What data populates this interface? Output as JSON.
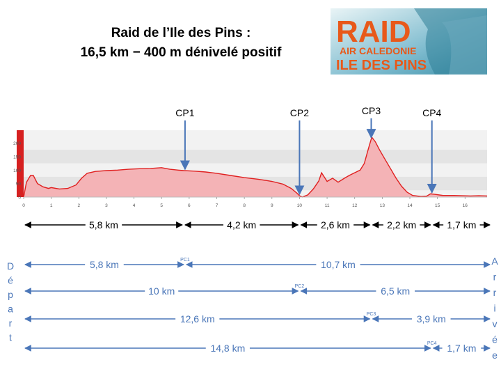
{
  "title": {
    "line1": "Raid de l’Ile des Pins :",
    "line2": "16,5 km − 400 m dénivelé positif"
  },
  "logo": {
    "word": "RAID",
    "line2": "AIR CALEDONIE",
    "line3": "ILE DES PINS"
  },
  "chart_data": {
    "type": "area",
    "x_ticks": [
      0,
      1,
      2,
      3,
      4,
      5,
      6,
      7,
      8,
      9,
      10,
      11,
      12,
      13,
      14,
      15,
      16
    ],
    "y_ticks": [
      0,
      50,
      100,
      150,
      200
    ],
    "xlim": [
      0,
      16.8
    ],
    "ylim": [
      0,
      240
    ],
    "fill_color": "#f4b3b6",
    "line_color": "#e02020",
    "profile": [
      [
        0,
        0
      ],
      [
        0.1,
        55
      ],
      [
        0.25,
        80
      ],
      [
        0.35,
        80
      ],
      [
        0.5,
        50
      ],
      [
        0.7,
        38
      ],
      [
        0.9,
        32
      ],
      [
        1.0,
        35
      ],
      [
        1.3,
        30
      ],
      [
        1.6,
        32
      ],
      [
        1.9,
        45
      ],
      [
        2.1,
        70
      ],
      [
        2.3,
        88
      ],
      [
        2.6,
        95
      ],
      [
        3.0,
        98
      ],
      [
        3.4,
        100
      ],
      [
        3.8,
        103
      ],
      [
        4.2,
        105
      ],
      [
        4.6,
        106
      ],
      [
        5.0,
        109
      ],
      [
        5.3,
        103
      ],
      [
        5.6,
        100
      ],
      [
        5.8,
        98
      ],
      [
        6.2,
        96
      ],
      [
        6.6,
        93
      ],
      [
        7.0,
        88
      ],
      [
        7.5,
        80
      ],
      [
        8.0,
        72
      ],
      [
        8.5,
        66
      ],
      [
        9.0,
        58
      ],
      [
        9.4,
        48
      ],
      [
        9.7,
        32
      ],
      [
        9.9,
        15
      ],
      [
        10.0,
        5
      ],
      [
        10.1,
        0
      ],
      [
        10.3,
        8
      ],
      [
        10.5,
        30
      ],
      [
        10.7,
        60
      ],
      [
        10.8,
        90
      ],
      [
        11.0,
        58
      ],
      [
        11.2,
        70
      ],
      [
        11.4,
        55
      ],
      [
        11.6,
        68
      ],
      [
        11.8,
        80
      ],
      [
        12.0,
        90
      ],
      [
        12.2,
        100
      ],
      [
        12.35,
        125
      ],
      [
        12.5,
        180
      ],
      [
        12.62,
        222
      ],
      [
        12.75,
        205
      ],
      [
        12.9,
        175
      ],
      [
        13.1,
        140
      ],
      [
        13.3,
        105
      ],
      [
        13.5,
        70
      ],
      [
        13.7,
        40
      ],
      [
        13.9,
        18
      ],
      [
        14.1,
        6
      ],
      [
        14.4,
        2
      ],
      [
        14.6,
        3
      ],
      [
        14.75,
        12
      ],
      [
        14.9,
        10
      ],
      [
        15.2,
        6
      ],
      [
        15.6,
        6
      ],
      [
        15.9,
        5
      ],
      [
        16.2,
        4
      ],
      [
        16.5,
        5
      ],
      [
        16.8,
        4
      ]
    ],
    "checkpoints": [
      {
        "label": "CP1",
        "x": 5.85
      },
      {
        "label": "CP2",
        "x": 10.0
      },
      {
        "label": "CP3",
        "x": 12.6
      },
      {
        "label": "CP4",
        "x": 14.8
      }
    ],
    "segments": [
      {
        "from": 0,
        "to": 5.8,
        "label": "5,8 km"
      },
      {
        "from": 5.8,
        "to": 10.0,
        "label": "4,2 km"
      },
      {
        "from": 10.0,
        "to": 12.6,
        "label": "2,6 km"
      },
      {
        "from": 12.6,
        "to": 14.8,
        "label": "2,2 km"
      },
      {
        "from": 14.8,
        "to": 16.5,
        "label": "1,7 km"
      }
    ]
  },
  "distances": {
    "start_label": "Départ",
    "end_label": "Arrivée",
    "rows": [
      {
        "pc": "PC1",
        "to_pc": "5,8 km",
        "from_pc": "10,7 km"
      },
      {
        "pc": "PC2",
        "to_pc": "10 km",
        "from_pc": "6,5 km"
      },
      {
        "pc": "PC3",
        "to_pc": "12,6 km",
        "from_pc": "3,9 km"
      },
      {
        "pc": "PC4",
        "to_pc": "14,8 km",
        "from_pc": "1,7 km"
      }
    ]
  }
}
